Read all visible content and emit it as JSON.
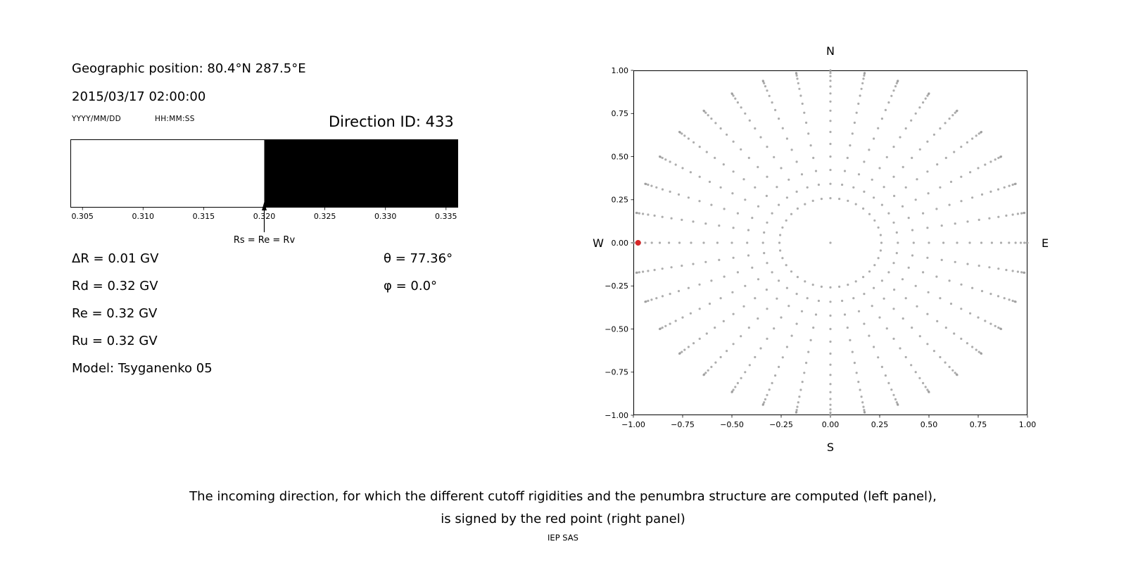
{
  "header": {
    "geo_position": "Geographic position: 80.4°N 287.5°E",
    "datetime": "2015/03/17 02:00:00",
    "date_format": "YYYY/MM/DD",
    "time_format": "HH:MM:SS",
    "direction_id": "Direction ID: 433"
  },
  "params": {
    "delta_r": "ΔR = 0.01 GV",
    "rd": "Rd = 0.32 GV",
    "re": "Re = 0.32 GV",
    "ru": "Ru = 0.32 GV",
    "model": "Model: Tsyganenko 05",
    "theta": "θ = 77.36°",
    "phi": "φ = 0.0°"
  },
  "caption": {
    "line1": "The incoming direction, for which the different cutoff rigidities and the penumbra structure are computed (left panel),",
    "line2": "is signed by the red point (right panel)",
    "credit": "IEP SAS"
  },
  "colors": {
    "allowed": "#ffffff",
    "forbidden": "#000000",
    "grid_points": "#999999",
    "highlight": "#d62728"
  },
  "chart_data": [
    {
      "type": "bar",
      "x_range": [
        0.304,
        0.336
      ],
      "xticks": [
        0.305,
        0.31,
        0.315,
        0.32,
        0.325,
        0.33,
        0.335
      ],
      "segments": [
        {
          "x_from": 0.304,
          "x_to": 0.32,
          "state": "allowed",
          "color": "#ffffff"
        },
        {
          "x_from": 0.32,
          "x_to": 0.336,
          "state": "forbidden",
          "color": "#000000"
        }
      ],
      "annotation": {
        "x": 0.32,
        "label": "Rs = Re = Rv"
      },
      "cutoff_rigidities_GV": {
        "delta_R": 0.01,
        "Rd": 0.32,
        "Re": 0.32,
        "Ru": 0.32
      }
    },
    {
      "type": "scatter",
      "xlim": [
        -1,
        1
      ],
      "ylim": [
        -1,
        1
      ],
      "xticks": [
        -1.0,
        -0.75,
        -0.5,
        -0.25,
        0.0,
        0.25,
        0.5,
        0.75,
        1.0
      ],
      "yticks": [
        1.0,
        0.75,
        0.5,
        0.25,
        0.0,
        -0.25,
        -0.5,
        -0.75,
        -1.0
      ],
      "grid": false,
      "compass_labels": {
        "top": "N",
        "bottom": "S",
        "left": "W",
        "right": "E"
      },
      "point_color": "#999999",
      "point_radius_px": 1.6,
      "azimuth_step_deg": 10,
      "zenith_start_deg": 15,
      "zenith_step_deg": 5,
      "zenith_end_deg": 90,
      "radius_rule": "r = sin(zenith)",
      "center_point": [
        0,
        0
      ],
      "highlight_point": {
        "x": -0.976,
        "y": 0.0,
        "color": "#d62728",
        "radius_px": 4,
        "theta_deg": 77.36,
        "phi_deg": 0.0
      }
    }
  ]
}
